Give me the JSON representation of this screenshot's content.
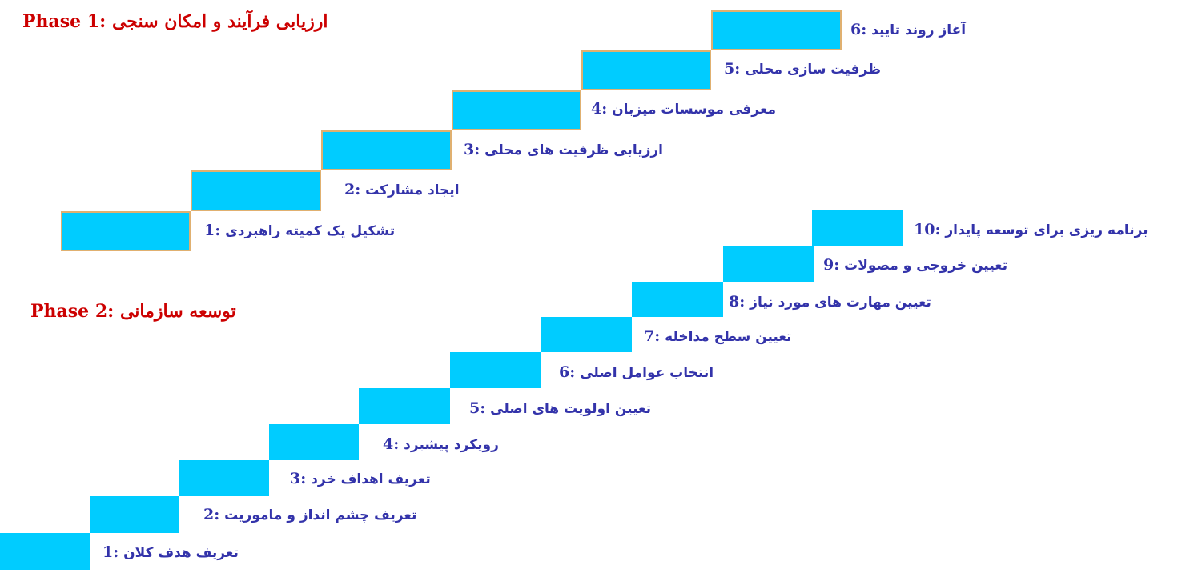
{
  "phase1": {
    "title": "Phase 1: ارزیابی فرآیند و امکان سنجی",
    "steps": [
      {
        "num": "1:",
        "text": "تشکیل یک کمیته راهبردی"
      },
      {
        "num": "2:",
        "text": "ایجاد مشارکت"
      },
      {
        "num": "3:",
        "text": "ارزیابی ظرفیت های محلی"
      },
      {
        "num": "4:",
        "text": "معرفی موسسات میزبان"
      },
      {
        "num": "5:",
        "text": "ظرفیت سازی محلی"
      },
      {
        "num": "6:",
        "text": "آغاز روند تایید"
      }
    ]
  },
  "phase2": {
    "title": "Phase 2: توسعه سازمانی",
    "steps": [
      {
        "num": "1:",
        "text": "تعریف هدف کلان"
      },
      {
        "num": "2:",
        "text": "تعریف چشم انداز و ماموریت"
      },
      {
        "num": "3:",
        "text": "تعریف اهداف خرد"
      },
      {
        "num": "4:",
        "text": "رویکرد پیشبرد"
      },
      {
        "num": "5:",
        "text": "تعیین اولویت های اصلی"
      },
      {
        "num": "6:",
        "text": "انتخاب عوامل اصلی"
      },
      {
        "num": "7:",
        "text": "تعیین سطح مداخله"
      },
      {
        "num": "8:",
        "text": "تعیین مهارت های مورد نیاز"
      },
      {
        "num": "9:",
        "text": "تعیین خروجی و مصولات"
      },
      {
        "num": "10:",
        "text": "برنامه ریزی برای توسعه پایدار"
      }
    ]
  },
  "colors": {
    "step_fill": "#00ccff",
    "title": "#cc0000",
    "label": "#3333aa"
  }
}
